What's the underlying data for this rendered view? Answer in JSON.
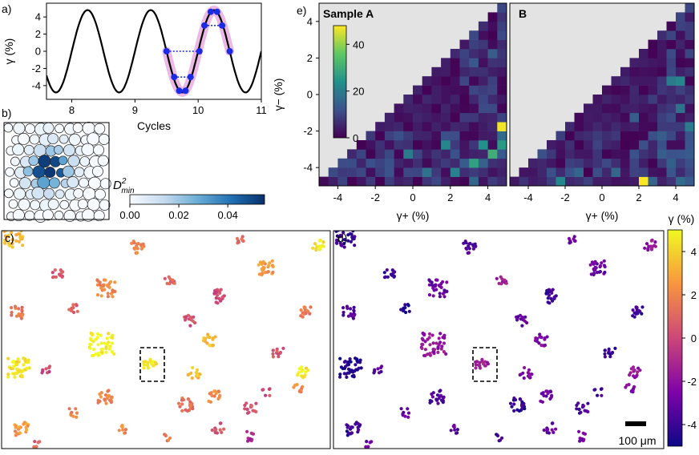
{
  "colors": {
    "sine": "#000000",
    "highlight": "#e7a6e0",
    "marker": "#1a2be3",
    "blue_dark": "#08306b",
    "blue_light": "#f7fbff",
    "mask": "#e3e3e3"
  },
  "panel_labels": {
    "a": "a)",
    "b": "b)",
    "c": "c)",
    "d": "d)",
    "e": "e)"
  },
  "chart_data": [
    {
      "id": "a",
      "type": "line",
      "xlabel": "Cycles",
      "ylabel": "γ (%)",
      "xlim": [
        7.6,
        11.0
      ],
      "ylim": [
        -5.6,
        5.6
      ],
      "xticks": [
        "8",
        "9",
        "10",
        "11"
      ],
      "yticks": [
        "-4",
        "-2",
        "0",
        "2",
        "4"
      ],
      "amplitude": 4.8,
      "period": 1.0,
      "peak_cycle": 8.25,
      "highlight_range": [
        9.5,
        10.5
      ],
      "marker_points": [
        {
          "x": 9.5,
          "y": 0.0
        },
        {
          "x": 9.62,
          "y": -3.0
        },
        {
          "x": 9.7,
          "y": -4.6
        },
        {
          "x": 9.8,
          "y": -4.6
        },
        {
          "x": 9.88,
          "y": -3.0
        },
        {
          "x": 10.02,
          "y": 0.0
        },
        {
          "x": 10.1,
          "y": 3.0
        },
        {
          "x": 10.2,
          "y": 4.6
        },
        {
          "x": 10.3,
          "y": 4.6
        },
        {
          "x": 10.38,
          "y": 3.0
        },
        {
          "x": 10.5,
          "y": 0.0
        }
      ],
      "dotted_pairs": [
        [
          {
            "x": 9.5,
            "y": 0.0
          },
          {
            "x": 10.02,
            "y": 0.0
          }
        ],
        [
          {
            "x": 9.62,
            "y": -3.0
          },
          {
            "x": 9.88,
            "y": -3.0
          }
        ],
        [
          {
            "x": 10.1,
            "y": 3.0
          },
          {
            "x": 10.38,
            "y": 3.0
          }
        ]
      ]
    },
    {
      "id": "b",
      "type": "scatter",
      "description": "particle packing colored by D2min",
      "colorbar_label": "D",
      "colorbar_label_sup": "2",
      "colorbar_label_sub": "min",
      "colorbar_ticks": [
        "0.00",
        "0.02",
        "0.04"
      ],
      "colorbar_range": [
        0.0,
        0.055
      ],
      "particles": [
        [
          0.1,
          0.1,
          0.0
        ],
        [
          0.5,
          0.1,
          0.002
        ],
        [
          0.9,
          0.1,
          0.0
        ],
        [
          1.3,
          0.1,
          0.003
        ],
        [
          1.7,
          0.1,
          0.004
        ],
        [
          2.1,
          0.1,
          0.0
        ],
        [
          2.5,
          0.1,
          0.001
        ],
        [
          2.9,
          0.1,
          0.0
        ],
        [
          3.3,
          0.1,
          0.0
        ],
        [
          3.7,
          0.1,
          0.0
        ],
        [
          0.3,
          0.5,
          0.001
        ],
        [
          0.7,
          0.5,
          0.0
        ],
        [
          1.1,
          0.5,
          0.002
        ],
        [
          1.5,
          0.5,
          0.005
        ],
        [
          1.9,
          0.5,
          0.008
        ],
        [
          2.3,
          0.5,
          0.006
        ],
        [
          2.7,
          0.5,
          0.002
        ],
        [
          3.1,
          0.5,
          0.001
        ],
        [
          3.5,
          0.5,
          0.0
        ],
        [
          3.9,
          0.5,
          0.0
        ],
        [
          0.1,
          0.9,
          0.0
        ],
        [
          0.5,
          0.9,
          0.003
        ],
        [
          0.9,
          0.9,
          0.006
        ],
        [
          1.3,
          0.9,
          0.012
        ],
        [
          1.7,
          0.9,
          0.02
        ],
        [
          2.1,
          0.9,
          0.018
        ],
        [
          2.5,
          0.9,
          0.01
        ],
        [
          2.9,
          0.9,
          0.004
        ],
        [
          3.3,
          0.9,
          0.001
        ],
        [
          3.7,
          0.9,
          0.0
        ],
        [
          0.3,
          1.3,
          0.002
        ],
        [
          0.7,
          1.3,
          0.008
        ],
        [
          1.1,
          1.3,
          0.02
        ],
        [
          1.5,
          1.3,
          0.052
        ],
        [
          1.9,
          1.3,
          0.05
        ],
        [
          2.3,
          1.3,
          0.03
        ],
        [
          2.7,
          1.3,
          0.012
        ],
        [
          3.1,
          1.3,
          0.003
        ],
        [
          3.5,
          1.3,
          0.0
        ],
        [
          3.9,
          1.3,
          0.0
        ],
        [
          0.1,
          1.7,
          0.0
        ],
        [
          0.5,
          1.7,
          0.006
        ],
        [
          0.9,
          1.7,
          0.022
        ],
        [
          1.3,
          1.7,
          0.048
        ],
        [
          1.7,
          1.7,
          0.053
        ],
        [
          2.1,
          1.7,
          0.046
        ],
        [
          2.5,
          1.7,
          0.02
        ],
        [
          2.9,
          1.7,
          0.006
        ],
        [
          3.3,
          1.7,
          0.001
        ],
        [
          3.7,
          1.7,
          0.0
        ],
        [
          0.3,
          2.1,
          0.001
        ],
        [
          0.7,
          2.1,
          0.01
        ],
        [
          1.1,
          2.1,
          0.018
        ],
        [
          1.5,
          2.1,
          0.03
        ],
        [
          1.9,
          2.1,
          0.026
        ],
        [
          2.3,
          2.1,
          0.016
        ],
        [
          2.7,
          2.1,
          0.008
        ],
        [
          3.1,
          2.1,
          0.002
        ],
        [
          3.5,
          2.1,
          0.0
        ],
        [
          3.9,
          2.1,
          0.0
        ],
        [
          0.1,
          2.5,
          0.0
        ],
        [
          0.5,
          2.5,
          0.003
        ],
        [
          0.9,
          2.5,
          0.006
        ],
        [
          1.3,
          2.5,
          0.01
        ],
        [
          1.7,
          2.5,
          0.012
        ],
        [
          2.1,
          2.5,
          0.007
        ],
        [
          2.5,
          2.5,
          0.003
        ],
        [
          2.9,
          2.5,
          0.001
        ],
        [
          3.3,
          2.5,
          0.0
        ],
        [
          3.7,
          2.5,
          0.0
        ],
        [
          0.3,
          2.9,
          0.0
        ],
        [
          0.7,
          2.9,
          0.001
        ],
        [
          1.1,
          2.9,
          0.002
        ],
        [
          1.5,
          2.9,
          0.003
        ],
        [
          1.9,
          2.9,
          0.002
        ],
        [
          2.3,
          2.9,
          0.001
        ],
        [
          2.7,
          2.9,
          0.0
        ],
        [
          3.1,
          2.9,
          0.0
        ],
        [
          3.5,
          2.9,
          0.0
        ],
        [
          3.9,
          2.9,
          0.0
        ],
        [
          0.1,
          3.3,
          0.0
        ],
        [
          0.5,
          3.3,
          0.0
        ],
        [
          0.9,
          3.3,
          0.001
        ],
        [
          1.3,
          3.3,
          0.0
        ],
        [
          1.7,
          3.3,
          0.0
        ],
        [
          2.1,
          3.3,
          0.001
        ],
        [
          2.5,
          3.3,
          0.0
        ],
        [
          2.9,
          3.3,
          0.0
        ],
        [
          3.3,
          3.3,
          0.0
        ],
        [
          3.7,
          3.3,
          0.0
        ]
      ]
    },
    {
      "id": "e",
      "type": "heatmap",
      "xlabel": "γ+ (%)",
      "ylabel": "γ− (%)",
      "xlim": [
        -5,
        5
      ],
      "ylim": [
        -5,
        5
      ],
      "xticks": [
        "-4",
        "-2",
        "0",
        "2",
        "4"
      ],
      "yticks": [
        "-4",
        "-2",
        "0",
        "2",
        "4"
      ],
      "colorbar_ticks": [
        "0",
        "20",
        "40"
      ],
      "colorbar_range": [
        0,
        48
      ],
      "panels": [
        {
          "title": "Sample A",
          "hot_cells": [
            {
              "x": 4.75,
              "y": -1.75,
              "value": 47
            },
            {
              "x": 4.25,
              "y": -3.25,
              "value": 30
            },
            {
              "x": 3.25,
              "y": -3.75,
              "value": 27
            },
            {
              "x": 3.75,
              "y": -2.75,
              "value": 24
            },
            {
              "x": 1.75,
              "y": -2.75,
              "value": 22
            },
            {
              "x": -0.25,
              "y": -3.25,
              "value": 20
            },
            {
              "x": 2.25,
              "y": -4.25,
              "value": 21
            },
            {
              "x": 0.75,
              "y": -4.25,
              "value": 18
            },
            {
              "x": 4.75,
              "y": -2.75,
              "value": 26
            },
            {
              "x": 4.25,
              "y": 2.25,
              "value": 14
            },
            {
              "x": 3.25,
              "y": 1.75,
              "value": 13
            },
            {
              "x": 2.75,
              "y": 0.75,
              "value": 10
            }
          ]
        },
        {
          "title": "B",
          "hot_cells": [
            {
              "x": 2.25,
              "y": -4.75,
              "value": 48
            },
            {
              "x": -2.25,
              "y": -4.75,
              "value": 22
            },
            {
              "x": 3.75,
              "y": 0.75,
              "value": 20
            },
            {
              "x": 4.25,
              "y": 0.75,
              "value": 22
            },
            {
              "x": 0.75,
              "y": -4.25,
              "value": 16
            },
            {
              "x": -1.25,
              "y": -4.25,
              "value": 16
            },
            {
              "x": 1.75,
              "y": -1.25,
              "value": 14
            },
            {
              "x": 4.25,
              "y": -0.75,
              "value": 18
            },
            {
              "x": 3.25,
              "y": -2.25,
              "value": 14
            },
            {
              "x": 4.75,
              "y": -1.75,
              "value": 20
            }
          ]
        }
      ]
    },
    {
      "id": "cd",
      "type": "scatter",
      "description": "spatial maps of irreversible clusters colored by γ",
      "colorbar_label": "γ (%)",
      "colorbar_ticks": [
        "4",
        "2",
        "0",
        "-2",
        "-4"
      ],
      "colorbar_range": [
        -5,
        5
      ],
      "scale_bar_label": "100 μm",
      "clusters": [
        {
          "x": 15,
          "y": 8,
          "value_c": 3.5,
          "value_d": -4.0,
          "n": 30
        },
        {
          "x": 170,
          "y": 18,
          "value_c": 2.0,
          "value_d": -3.5,
          "n": 18
        },
        {
          "x": 300,
          "y": 8,
          "value_c": 1.0,
          "value_d": -3.0,
          "n": 8
        },
        {
          "x": 330,
          "y": 45,
          "value_c": 2.5,
          "value_d": -3.0,
          "n": 25
        },
        {
          "x": 395,
          "y": 15,
          "value_c": 4.5,
          "value_d": -2.0,
          "n": 14
        },
        {
          "x": 70,
          "y": 50,
          "value_c": 0.5,
          "value_d": -4.0,
          "n": 12
        },
        {
          "x": 130,
          "y": 70,
          "value_c": 2.0,
          "value_d": -3.0,
          "n": 30
        },
        {
          "x": 210,
          "y": 60,
          "value_c": 1.0,
          "value_d": -1.5,
          "n": 10
        },
        {
          "x": 270,
          "y": 80,
          "value_c": 0.0,
          "value_d": -4.0,
          "n": 22
        },
        {
          "x": 20,
          "y": 100,
          "value_c": 1.5,
          "value_d": -3.5,
          "n": 16
        },
        {
          "x": 90,
          "y": 95,
          "value_c": 1.0,
          "value_d": -4.5,
          "n": 10
        },
        {
          "x": 235,
          "y": 110,
          "value_c": 0.5,
          "value_d": -3.0,
          "n": 12
        },
        {
          "x": 380,
          "y": 100,
          "value_c": 1.5,
          "value_d": -4.0,
          "n": 14
        },
        {
          "x": 125,
          "y": 140,
          "value_c": 4.8,
          "value_d": -2.0,
          "n": 45
        },
        {
          "x": 22,
          "y": 170,
          "value_c": 4.5,
          "value_d": -4.5,
          "n": 40
        },
        {
          "x": 185,
          "y": 165,
          "value_c": 4.5,
          "value_d": -1.5,
          "n": 16
        },
        {
          "x": 260,
          "y": 135,
          "value_c": 3.5,
          "value_d": -2.5,
          "n": 16
        },
        {
          "x": 345,
          "y": 150,
          "value_c": 0.5,
          "value_d": -4.0,
          "n": 12
        },
        {
          "x": 375,
          "y": 175,
          "value_c": 4.5,
          "value_d": -2.0,
          "n": 14
        },
        {
          "x": 240,
          "y": 175,
          "value_c": 3.5,
          "value_d": -2.5,
          "n": 14
        },
        {
          "x": 55,
          "y": 170,
          "value_c": 0.0,
          "value_d": -3.5,
          "n": 8
        },
        {
          "x": 130,
          "y": 205,
          "value_c": 2.0,
          "value_d": -3.5,
          "n": 22
        },
        {
          "x": 230,
          "y": 215,
          "value_c": 1.5,
          "value_d": -4.0,
          "n": 20
        },
        {
          "x": 265,
          "y": 205,
          "value_c": 2.0,
          "value_d": -3.0,
          "n": 14
        },
        {
          "x": 310,
          "y": 220,
          "value_c": 0.5,
          "value_d": -3.5,
          "n": 14
        },
        {
          "x": 370,
          "y": 195,
          "value_c": 2.0,
          "value_d": -2.5,
          "n": 10
        },
        {
          "x": 25,
          "y": 245,
          "value_c": 2.5,
          "value_d": -4.0,
          "n": 20
        },
        {
          "x": 90,
          "y": 225,
          "value_c": 2.0,
          "value_d": -3.0,
          "n": 8
        },
        {
          "x": 270,
          "y": 245,
          "value_c": 0.5,
          "value_d": -3.0,
          "n": 14
        },
        {
          "x": 310,
          "y": 255,
          "value_c": -1.0,
          "value_d": -2.5,
          "n": 10
        },
        {
          "x": 205,
          "y": 255,
          "value_c": 1.5,
          "value_d": -4.0,
          "n": 6
        },
        {
          "x": 150,
          "y": 245,
          "value_c": 2.0,
          "value_d": -3.5,
          "n": 8
        },
        {
          "x": 330,
          "y": 200,
          "value_c": 0.0,
          "value_d": -4.0,
          "n": 6
        },
        {
          "x": 45,
          "y": 265,
          "value_c": 1.0,
          "value_d": -3.0,
          "n": 6
        }
      ]
    }
  ]
}
